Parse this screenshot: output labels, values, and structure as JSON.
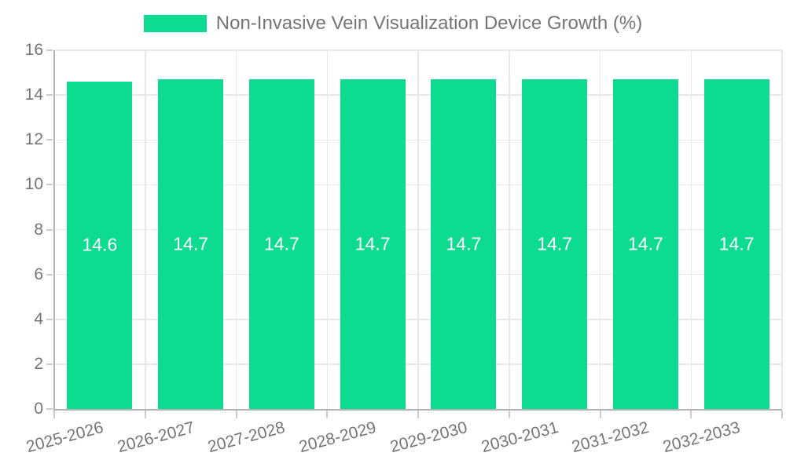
{
  "legend": {
    "items": [
      {
        "label": "Non-Invasive Vein Visualization Device Growth (%)",
        "color": "#0cdb90"
      }
    ]
  },
  "chart_data": {
    "type": "bar",
    "title": "Non-Invasive Vein Visualization Device Growth (%)",
    "categories": [
      "2025-2026",
      "2026-2027",
      "2027-2028",
      "2028-2029",
      "2029-2030",
      "2030-2031",
      "2031-2032",
      "2032-2033"
    ],
    "values": [
      14.6,
      14.7,
      14.7,
      14.7,
      14.7,
      14.7,
      14.7,
      14.7
    ],
    "xlabel": "",
    "ylabel": "",
    "ylim": [
      0,
      16
    ],
    "yticks": [
      0,
      2,
      4,
      6,
      8,
      10,
      12,
      14,
      16
    ],
    "grid": true,
    "legend_position": "top",
    "x_label_rotation_deg": -15,
    "bar_color": "#0cdb90",
    "value_label_color": "#ffffff",
    "axis_label_color": "#757575",
    "gridline_color": "#e8e8e8",
    "axis_line_color": "#b3b3b3"
  }
}
